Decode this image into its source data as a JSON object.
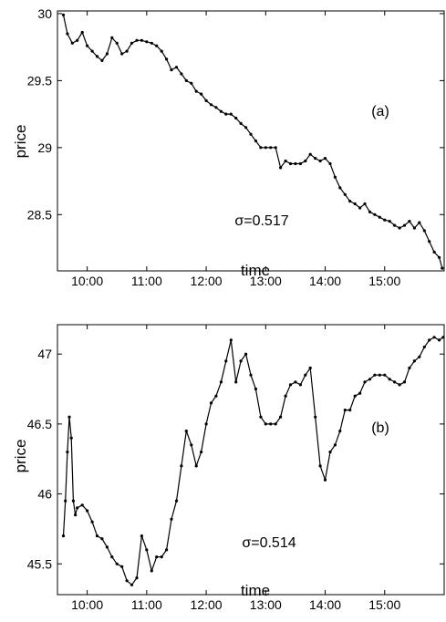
{
  "chart_data": [
    {
      "type": "line",
      "panel_label": "(a)",
      "annotation": "σ=0.517",
      "xlabel": "time",
      "ylabel": "price",
      "x_ticks": [
        "10:00",
        "11:00",
        "12:00",
        "13:00",
        "14:00",
        "15:00"
      ],
      "y_ticks": [
        "28.5",
        "29",
        "29.5",
        "30"
      ],
      "xlim": [
        "09:30",
        "16:00"
      ],
      "ylim": [
        28.08,
        30.02
      ],
      "grid": false,
      "series": [
        {
          "x": [
            "09:36",
            "09:40",
            "09:45",
            "09:50",
            "09:55",
            "10:00",
            "10:05",
            "10:10",
            "10:15",
            "10:20",
            "10:25",
            "10:30",
            "10:35",
            "10:40",
            "10:45",
            "10:50",
            "10:55",
            "11:00",
            "11:05",
            "11:10",
            "11:15",
            "11:20",
            "11:25",
            "11:30",
            "11:35",
            "11:40",
            "11:45",
            "11:50",
            "11:55",
            "12:00",
            "12:05",
            "12:10",
            "12:15",
            "12:20",
            "12:25",
            "12:30",
            "12:35",
            "12:40",
            "12:45",
            "12:50",
            "12:55",
            "13:00",
            "13:05",
            "13:10",
            "13:15",
            "13:20",
            "13:25",
            "13:30",
            "13:35",
            "13:40",
            "13:45",
            "13:50",
            "13:55",
            "14:00",
            "14:05",
            "14:10",
            "14:15",
            "14:20",
            "14:25",
            "14:30",
            "14:35",
            "14:40",
            "14:45",
            "14:50",
            "14:55",
            "15:00",
            "15:05",
            "15:10",
            "15:15",
            "15:20",
            "15:25",
            "15:30",
            "15:35",
            "15:40",
            "15:45",
            "15:50",
            "15:55",
            "15:58"
          ],
          "values": [
            29.99,
            29.85,
            29.78,
            29.8,
            29.86,
            29.76,
            29.72,
            29.68,
            29.65,
            29.7,
            29.82,
            29.78,
            29.7,
            29.72,
            29.78,
            29.8,
            29.8,
            29.79,
            29.78,
            29.76,
            29.72,
            29.66,
            29.58,
            29.6,
            29.55,
            29.5,
            29.48,
            29.42,
            29.4,
            29.35,
            29.32,
            29.3,
            29.27,
            29.25,
            29.25,
            29.22,
            29.18,
            29.15,
            29.1,
            29.05,
            29.0,
            29.0,
            29.0,
            29.0,
            28.85,
            28.9,
            28.88,
            28.88,
            28.88,
            28.9,
            28.95,
            28.92,
            28.9,
            28.92,
            28.88,
            28.78,
            28.7,
            28.65,
            28.6,
            28.58,
            28.55,
            28.58,
            28.52,
            28.5,
            28.48,
            28.46,
            28.45,
            28.42,
            28.4,
            28.42,
            28.45,
            28.4,
            28.44,
            28.38,
            28.3,
            28.22,
            28.18,
            28.1
          ]
        }
      ]
    },
    {
      "type": "line",
      "panel_label": "(b)",
      "annotation": "σ=0.514",
      "xlabel": "time",
      "ylabel": "price",
      "x_ticks": [
        "10:00",
        "11:00",
        "12:00",
        "13:00",
        "14:00",
        "15:00"
      ],
      "y_ticks": [
        "45.5",
        "46",
        "46.5",
        "47"
      ],
      "xlim": [
        "09:30",
        "16:00"
      ],
      "ylim": [
        45.28,
        47.21
      ],
      "grid": false,
      "series": [
        {
          "x": [
            "09:36",
            "09:38",
            "09:40",
            "09:42",
            "09:44",
            "09:46",
            "09:48",
            "09:50",
            "09:55",
            "10:00",
            "10:05",
            "10:10",
            "10:15",
            "10:20",
            "10:25",
            "10:30",
            "10:35",
            "10:40",
            "10:45",
            "10:50",
            "10:55",
            "11:00",
            "11:05",
            "11:10",
            "11:15",
            "11:20",
            "11:25",
            "11:30",
            "11:35",
            "11:40",
            "11:45",
            "11:50",
            "11:55",
            "12:00",
            "12:05",
            "12:10",
            "12:15",
            "12:20",
            "12:25",
            "12:30",
            "12:35",
            "12:40",
            "12:45",
            "12:50",
            "12:55",
            "13:00",
            "13:05",
            "13:10",
            "13:15",
            "13:20",
            "13:25",
            "13:30",
            "13:35",
            "13:40",
            "13:45",
            "13:50",
            "13:55",
            "14:00",
            "14:05",
            "14:10",
            "14:15",
            "14:20",
            "14:25",
            "14:30",
            "14:35",
            "14:40",
            "14:45",
            "14:50",
            "14:55",
            "15:00",
            "15:05",
            "15:10",
            "15:15",
            "15:20",
            "15:25",
            "15:30",
            "15:35",
            "15:40",
            "15:45",
            "15:50",
            "15:55",
            "15:59"
          ],
          "values": [
            45.7,
            45.95,
            46.3,
            46.55,
            46.4,
            45.95,
            45.85,
            45.9,
            45.92,
            45.88,
            45.8,
            45.7,
            45.68,
            45.62,
            45.55,
            45.5,
            45.48,
            45.38,
            45.35,
            45.4,
            45.7,
            45.6,
            45.45,
            45.55,
            45.55,
            45.6,
            45.82,
            45.95,
            46.2,
            46.45,
            46.35,
            46.2,
            46.3,
            46.5,
            46.65,
            46.7,
            46.8,
            46.95,
            47.1,
            46.8,
            46.95,
            47.0,
            46.85,
            46.75,
            46.55,
            46.5,
            46.5,
            46.5,
            46.55,
            46.7,
            46.78,
            46.8,
            46.78,
            46.85,
            46.9,
            46.55,
            46.2,
            46.1,
            46.3,
            46.35,
            46.45,
            46.6,
            46.6,
            46.7,
            46.72,
            46.8,
            46.82,
            46.85,
            46.85,
            46.85,
            46.82,
            46.8,
            46.78,
            46.8,
            46.9,
            46.95,
            46.98,
            47.05,
            47.1,
            47.12,
            47.1,
            47.12
          ]
        }
      ]
    }
  ]
}
